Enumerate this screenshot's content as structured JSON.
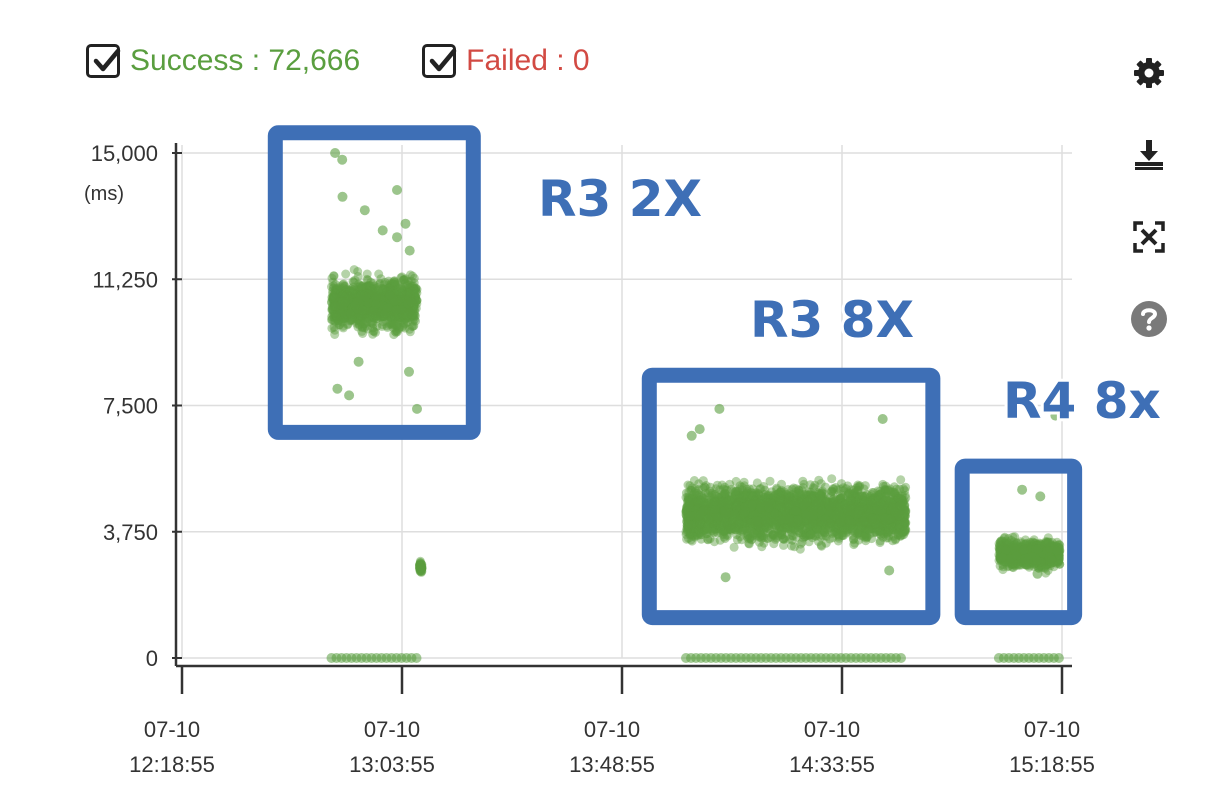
{
  "legend": {
    "success": {
      "label": "Success",
      "separator": " : ",
      "value": "72,666",
      "checked": true,
      "color": "#5a9e3f"
    },
    "failed": {
      "label": "Failed",
      "separator": " : ",
      "value": "0",
      "checked": true,
      "color": "#d24a43"
    }
  },
  "toolbar": [
    {
      "name": "settings-icon"
    },
    {
      "name": "download-icon"
    },
    {
      "name": "fullscreen-icon"
    },
    {
      "name": "help-icon"
    }
  ],
  "chart_data": {
    "type": "scatter",
    "title": "",
    "xlabel": "",
    "ylabel": "(ms)",
    "ylim": [
      0,
      15000
    ],
    "y_ticks": [
      0,
      3750,
      7500,
      11250,
      15000
    ],
    "y_tick_labels": [
      "0",
      "3,750",
      "7,500",
      "11,250",
      "15,000"
    ],
    "x_ticks": [
      {
        "date": "07-10",
        "time": "12:18:55"
      },
      {
        "date": "07-10",
        "time": "13:03:55"
      },
      {
        "date": "07-10",
        "time": "13:48:55"
      },
      {
        "date": "07-10",
        "time": "14:33:55"
      },
      {
        "date": "07-10",
        "time": "15:18:55"
      }
    ],
    "xlim": [
      "12:18:55",
      "15:18:55"
    ],
    "grid": true,
    "point_color": "#5a9e3f",
    "clusters": [
      {
        "start": "12:49:30",
        "end": "13:07:00",
        "y_center": 10500,
        "y_spread": 800,
        "outliers": [
          15000,
          14800,
          13900,
          13700,
          13300,
          12900,
          12700,
          12500,
          12100,
          8800,
          8500,
          8000,
          7800,
          7400
        ],
        "zero_band": true
      },
      {
        "start": "13:07:30",
        "end": "13:08:00",
        "y_center": 2700,
        "y_spread": 200,
        "outliers": [],
        "zero_band": false
      },
      {
        "start": "14:02:00",
        "end": "14:47:00",
        "y_center": 4300,
        "y_spread": 900,
        "outliers": [
          7400,
          7100,
          6800,
          6600,
          2600,
          2400
        ],
        "zero_band": true
      },
      {
        "start": "15:06:00",
        "end": "15:18:30",
        "y_center": 3100,
        "y_spread": 450,
        "outliers": [
          7200,
          5000,
          4800,
          2500
        ],
        "zero_band": true
      }
    ],
    "annotations": [
      {
        "label": "R3 2X",
        "start": "12:38:00",
        "end": "13:18:30",
        "y_top": 15600,
        "y_bottom": 6700
      },
      {
        "label": "R3 8X",
        "start": "13:54:30",
        "end": "14:52:30",
        "y_top": 8400,
        "y_bottom": 1200
      },
      {
        "label": "R4 8x",
        "start": "14:58:30",
        "end": "15:21:30",
        "y_top": 5700,
        "y_bottom": 1200
      }
    ]
  }
}
